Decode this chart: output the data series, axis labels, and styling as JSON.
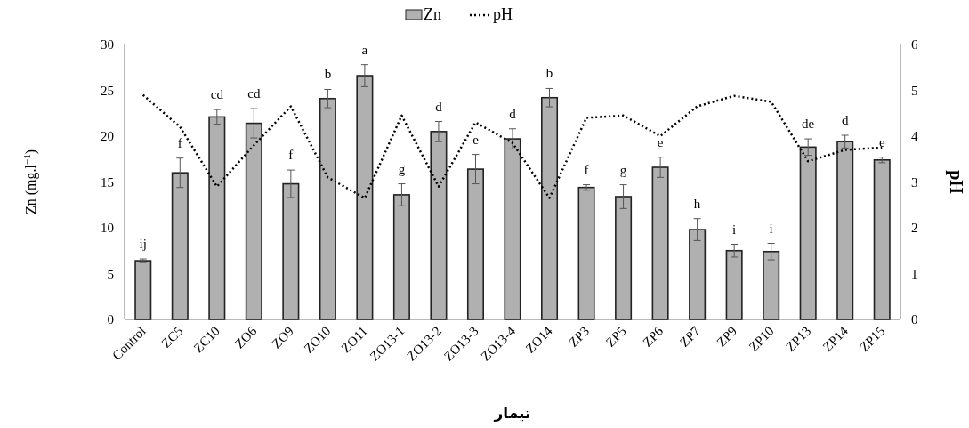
{
  "chart_data": {
    "type": "bar",
    "categories": [
      "Control",
      "ZC5",
      "ZC10",
      "ZO6",
      "ZO9",
      "ZO10",
      "ZO11",
      "ZO13-1",
      "ZO13-2",
      "ZO13-3",
      "ZO13-4",
      "ZO14",
      "ZP3",
      "ZP5",
      "ZP6",
      "ZP7",
      "ZP9",
      "ZP10",
      "ZP13",
      "ZP14",
      "ZP15"
    ],
    "series": [
      {
        "name": "Zn",
        "color": "#b0b0b0",
        "values": [
          6.4,
          16.0,
          22.1,
          21.4,
          14.8,
          24.1,
          26.6,
          13.6,
          20.5,
          16.4,
          19.7,
          24.2,
          14.4,
          13.4,
          16.6,
          9.8,
          7.5,
          7.4,
          18.8,
          19.4,
          17.4
        ],
        "errors": [
          0.2,
          1.6,
          0.8,
          1.6,
          1.5,
          1.0,
          1.2,
          1.2,
          1.1,
          1.6,
          1.1,
          1.0,
          0.3,
          1.3,
          1.1,
          1.2,
          0.7,
          0.9,
          0.9,
          0.7,
          0.3
        ],
        "value_labels": [
          "ij",
          "f",
          "cd",
          "cd",
          "f",
          "b",
          "a",
          "g",
          "d",
          "e",
          "d",
          "b",
          "f",
          "g",
          "e",
          "h",
          "i",
          "i",
          "de",
          "d",
          "e"
        ]
      },
      {
        "name": "pH",
        "type": "line",
        "axis": "y2",
        "color": "#000000",
        "line_style": "dotted",
        "values": [
          4.9,
          4.2,
          2.9,
          3.8,
          4.65,
          3.1,
          2.65,
          4.45,
          2.9,
          4.3,
          3.85,
          2.65,
          4.4,
          4.45,
          4.0,
          4.65,
          4.88,
          4.75,
          3.45,
          3.7,
          3.75
        ]
      }
    ],
    "xlabel": "تیمار",
    "ylabel": "Zn (mg.l$^{−1}$)",
    "y2label": "pH",
    "ylim": [
      0,
      30
    ],
    "yticks": [
      0,
      5,
      10,
      15,
      20,
      25,
      30
    ],
    "y2lim": [
      0,
      6
    ],
    "y2ticks": [
      0,
      1,
      2,
      3,
      4,
      5,
      6
    ],
    "legend": "top",
    "grid": false
  }
}
